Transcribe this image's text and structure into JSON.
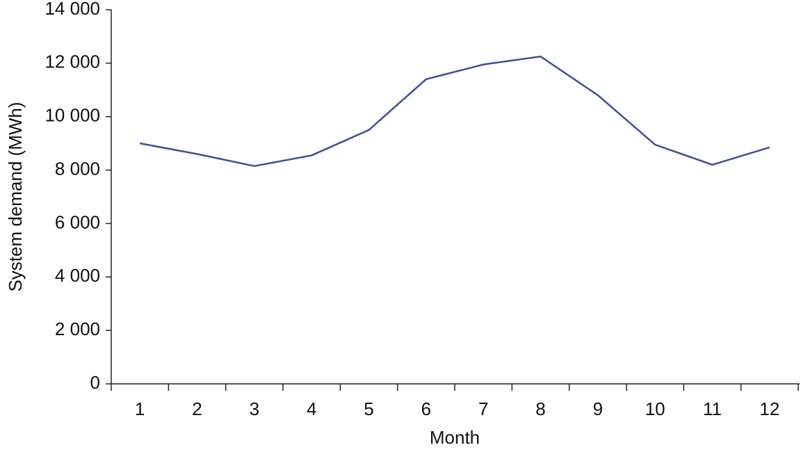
{
  "chart_data": {
    "type": "line",
    "x_label": "Month",
    "y_label": "System demand (MWh)",
    "categories": [
      "1",
      "2",
      "3",
      "4",
      "5",
      "6",
      "7",
      "8",
      "9",
      "10",
      "11",
      "12"
    ],
    "series": [
      {
        "color": "#3a4e9c",
        "values": [
          9000,
          8600,
          8150,
          8550,
          9500,
          11400,
          11950,
          12250,
          10800,
          8950,
          8200,
          8850
        ]
      }
    ],
    "ylim": [
      0,
      14000
    ],
    "yticks": [
      0,
      {
        "value": 2000,
        "label": "2 000"
      },
      {
        "value": 4000,
        "label": "4 000"
      },
      {
        "value": 6000,
        "label": "6 000"
      },
      {
        "value": 8000,
        "label": "8 000"
      },
      {
        "value": 10000,
        "label": "10 000"
      },
      {
        "value": 12000,
        "label": "12 000"
      },
      {
        "value": 14000,
        "label": "14 000"
      }
    ]
  }
}
